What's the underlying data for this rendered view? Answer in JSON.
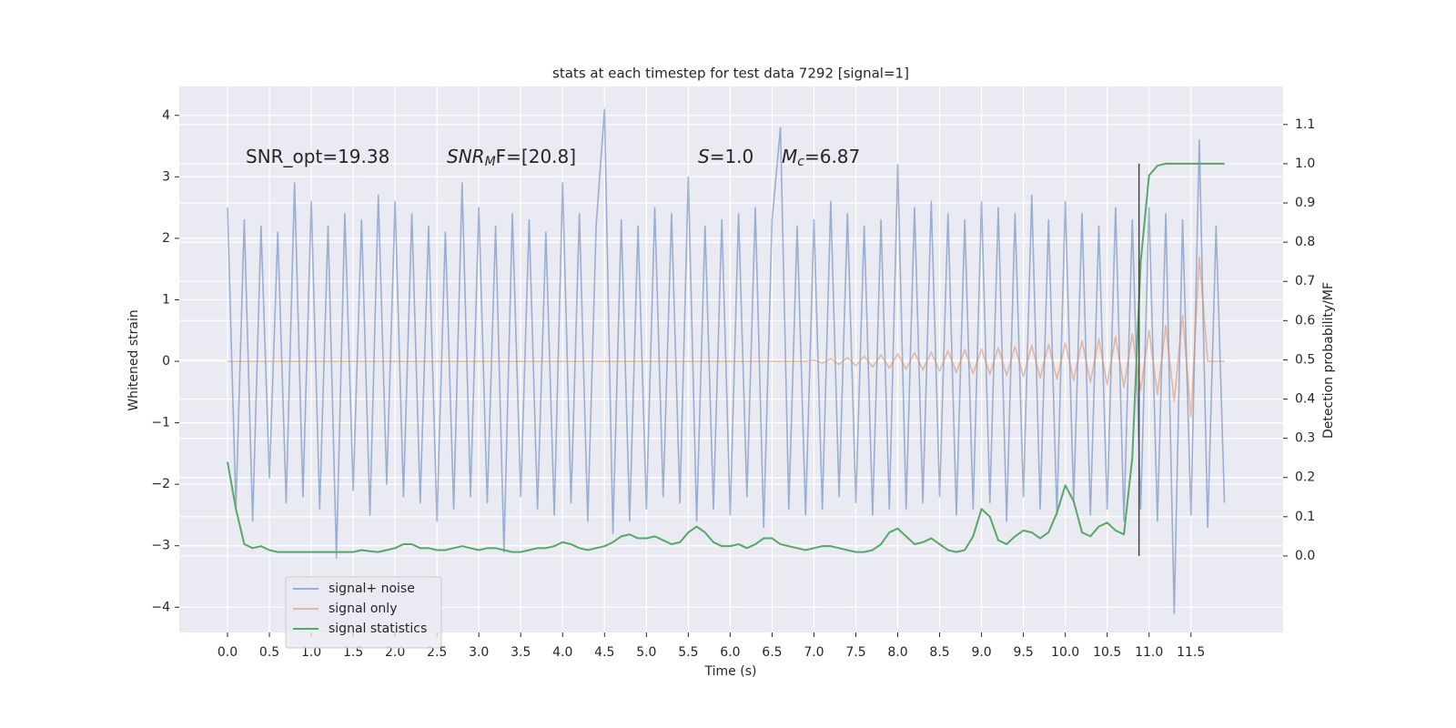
{
  "chart_data": {
    "type": "line",
    "title": "stats at each timestep for test data 7292 [signal=1]",
    "xlabel": "Time (s)",
    "ylabel": "Whitened strain",
    "y2label": "Detection probability/MF",
    "background": "#eaeaf2",
    "grid": true,
    "legend": "lower left",
    "xlim": [
      -0.576,
      12.6
    ],
    "ylim": [
      -4.41,
      4.47
    ],
    "y2lim": [
      -0.195,
      1.197
    ],
    "xticks": [
      {
        "value": 0,
        "label": "0.0"
      },
      0.5,
      {
        "value": 1,
        "label": "1.0"
      },
      1.5,
      {
        "value": 2,
        "label": "2.0"
      },
      2.5,
      {
        "value": 3,
        "label": "3.0"
      },
      3.5,
      {
        "value": 4,
        "label": "4.0"
      },
      4.5,
      {
        "value": 5,
        "label": "5.0"
      },
      5.5,
      {
        "value": 6,
        "label": "6.0"
      },
      6.5,
      {
        "value": 7,
        "label": "7.0"
      },
      7.5,
      {
        "value": 8,
        "label": "8.0"
      },
      8.5,
      {
        "value": 9,
        "label": "9.0"
      },
      9.5,
      {
        "value": 10,
        "label": "10.0"
      },
      10.5,
      {
        "value": 11,
        "label": "11.0"
      },
      11.5
    ],
    "yticks": [
      {
        "value": -4,
        "label": "−4"
      },
      {
        "value": -3,
        "label": "−3"
      },
      {
        "value": -2,
        "label": "−2"
      },
      {
        "value": -1,
        "label": "−1"
      },
      0,
      1,
      2,
      3,
      4
    ],
    "y2ticks": [
      {
        "value": 0,
        "label": "0.0"
      },
      0.1,
      0.2,
      0.3,
      0.4,
      0.5,
      0.6,
      0.7,
      0.8,
      0.9,
      {
        "value": 1,
        "label": "1.0"
      },
      1.1
    ],
    "annotations": [
      {
        "parts": [
          {
            "text": "SNR_opt=19.38"
          }
        ]
      },
      {
        "parts": [
          {
            "text": "SNR",
            "italic": true
          },
          {
            "text": "M",
            "italic": true,
            "sub": true
          },
          {
            "text": "F=[20.8]"
          }
        ]
      },
      {
        "parts": [
          {
            "text": "S",
            "italic": true
          },
          {
            "text": "=1.0"
          }
        ]
      },
      {
        "parts": [
          {
            "text": "M",
            "italic": true
          },
          {
            "text": "c",
            "italic": true,
            "sub": true
          },
          {
            "text": "=6.87"
          }
        ]
      }
    ],
    "vline": {
      "x": 10.88,
      "y2": [
        0,
        1
      ],
      "color": "#444444"
    },
    "x": [
      0,
      0.1,
      0.2,
      0.3,
      0.4,
      0.5,
      0.6,
      0.7,
      0.8,
      0.9,
      1,
      1.1,
      1.2,
      1.3,
      1.4,
      1.5,
      1.6,
      1.7,
      1.8,
      1.9,
      2,
      2.1,
      2.2,
      2.3,
      2.4,
      2.5,
      2.6,
      2.7,
      2.8,
      2.9,
      3,
      3.1,
      3.2,
      3.3,
      3.4,
      3.5,
      3.6,
      3.7,
      3.8,
      3.9,
      4,
      4.1,
      4.2,
      4.3,
      4.4,
      4.5,
      4.6,
      4.7,
      4.8,
      4.9,
      5,
      5.1,
      5.2,
      5.3,
      5.4,
      5.5,
      5.6,
      5.7,
      5.8,
      5.9,
      6,
      6.1,
      6.2,
      6.3,
      6.4,
      6.5,
      6.6,
      6.7,
      6.8,
      6.9,
      7,
      7.1,
      7.2,
      7.3,
      7.4,
      7.5,
      7.6,
      7.7,
      7.8,
      7.9,
      8,
      8.1,
      8.2,
      8.3,
      8.4,
      8.5,
      8.6,
      8.7,
      8.8,
      8.9,
      9,
      9.1,
      9.2,
      9.3,
      9.4,
      9.5,
      9.6,
      9.7,
      9.8,
      9.9,
      10,
      10.1,
      10.2,
      10.3,
      10.4,
      10.5,
      10.6,
      10.7,
      10.8,
      10.9,
      11,
      11.1,
      11.2,
      11.3,
      11.4,
      11.5,
      11.6,
      11.7,
      11.8,
      11.9
    ],
    "series": [
      {
        "name": "signal+ noise",
        "color": "#4c72b0",
        "opacity": 0.5,
        "values": [
          2.5,
          -2.4,
          2.3,
          -2.6,
          2.2,
          -1.9,
          2.1,
          -2.3,
          2.9,
          -2.2,
          2.6,
          -2.4,
          2.2,
          -3.2,
          2.4,
          -2.1,
          2.3,
          -2.5,
          2.7,
          -2.0,
          2.6,
          -2.2,
          2.4,
          -2.3,
          2.2,
          -2.6,
          2.1,
          -2.4,
          2.9,
          -2.2,
          2.5,
          -2.3,
          2.2,
          -3.1,
          2.4,
          -2.2,
          2.3,
          -2.4,
          2.1,
          -2.5,
          2.9,
          -2.3,
          2.4,
          -2.6,
          2.2,
          4.1,
          -2.8,
          2.3,
          -2.6,
          2.2,
          -2.4,
          2.5,
          -2.2,
          2.4,
          -2.3,
          3.0,
          -2.6,
          2.2,
          -2.4,
          2.3,
          -2.5,
          2.4,
          -2.2,
          2.5,
          -2.7,
          2.3,
          3.8,
          -2.4,
          2.2,
          -2.5,
          2.3,
          -2.4,
          2.6,
          -2.2,
          2.4,
          -2.3,
          2.2,
          -2.5,
          2.3,
          -2.4,
          3.2,
          -2.4,
          2.5,
          -2.3,
          2.6,
          -2.2,
          2.4,
          -2.5,
          2.3,
          -2.4,
          2.6,
          -2.3,
          2.5,
          -2.6,
          2.4,
          -2.2,
          2.7,
          -2.4,
          2.3,
          -2.5,
          2.6,
          -2.3,
          2.4,
          -2.5,
          2.2,
          -2.4,
          2.5,
          -2.6,
          2.3,
          -2.4,
          2.5,
          -2.6,
          2.4,
          -4.1,
          2.3,
          -2.5,
          3.6,
          -2.7,
          2.2,
          -2.3
        ]
      },
      {
        "name": "signal only",
        "color": "#dd8452",
        "opacity": 0.5,
        "values": [
          0,
          0,
          0,
          0,
          0,
          0,
          0,
          0,
          0,
          0,
          0,
          0,
          0,
          0,
          0,
          0,
          0,
          0,
          0,
          0,
          0,
          0,
          0,
          0,
          0,
          0,
          0,
          0,
          0,
          0,
          0,
          0,
          0,
          0,
          0,
          0,
          0,
          0,
          0,
          0,
          0,
          0,
          0,
          0,
          0,
          0,
          0,
          0,
          0,
          0,
          0,
          0,
          0,
          0,
          0,
          0,
          0,
          0,
          0,
          0,
          0,
          0,
          0,
          0,
          0,
          0,
          0,
          0,
          0,
          0,
          0.02,
          -0.03,
          0.04,
          -0.05,
          0.06,
          -0.07,
          0.08,
          -0.09,
          0.1,
          -0.11,
          0.12,
          -0.13,
          0.14,
          -0.14,
          0.15,
          -0.16,
          0.17,
          -0.18,
          0.19,
          -0.2,
          0.2,
          -0.21,
          0.22,
          -0.23,
          0.24,
          -0.25,
          0.26,
          -0.27,
          0.28,
          -0.29,
          0.3,
          -0.31,
          0.33,
          -0.34,
          0.36,
          -0.38,
          0.4,
          -0.42,
          0.44,
          -0.47,
          0.5,
          -0.54,
          0.58,
          -0.65,
          0.75,
          -0.9,
          1.7,
          0,
          0,
          0
        ]
      },
      {
        "name": "signal statistics",
        "color": "#55a868",
        "opacity": 1,
        "axis": "y2",
        "values": [
          0.24,
          0.12,
          0.03,
          0.02,
          0.025,
          0.015,
          0.01,
          0.01,
          0.01,
          0.01,
          0.01,
          0.01,
          0.01,
          0.01,
          0.01,
          0.01,
          0.015,
          0.012,
          0.01,
          0.015,
          0.02,
          0.03,
          0.03,
          0.02,
          0.02,
          0.015,
          0.015,
          0.02,
          0.025,
          0.02,
          0.015,
          0.02,
          0.02,
          0.015,
          0.01,
          0.01,
          0.015,
          0.02,
          0.02,
          0.025,
          0.035,
          0.03,
          0.02,
          0.015,
          0.02,
          0.025,
          0.035,
          0.05,
          0.055,
          0.045,
          0.045,
          0.05,
          0.04,
          0.03,
          0.035,
          0.06,
          0.075,
          0.06,
          0.035,
          0.025,
          0.025,
          0.03,
          0.02,
          0.03,
          0.045,
          0.045,
          0.03,
          0.025,
          0.02,
          0.015,
          0.02,
          0.025,
          0.025,
          0.02,
          0.015,
          0.01,
          0.01,
          0.015,
          0.03,
          0.06,
          0.07,
          0.05,
          0.03,
          0.035,
          0.045,
          0.03,
          0.015,
          0.01,
          0.015,
          0.05,
          0.12,
          0.1,
          0.04,
          0.03,
          0.05,
          0.065,
          0.06,
          0.045,
          0.06,
          0.11,
          0.18,
          0.14,
          0.06,
          0.05,
          0.075,
          0.085,
          0.065,
          0.055,
          0.25,
          0.75,
          0.97,
          0.995,
          1.0,
          1.0,
          1.0,
          1.0,
          1.0,
          1.0,
          1.0,
          1.0
        ]
      }
    ]
  }
}
